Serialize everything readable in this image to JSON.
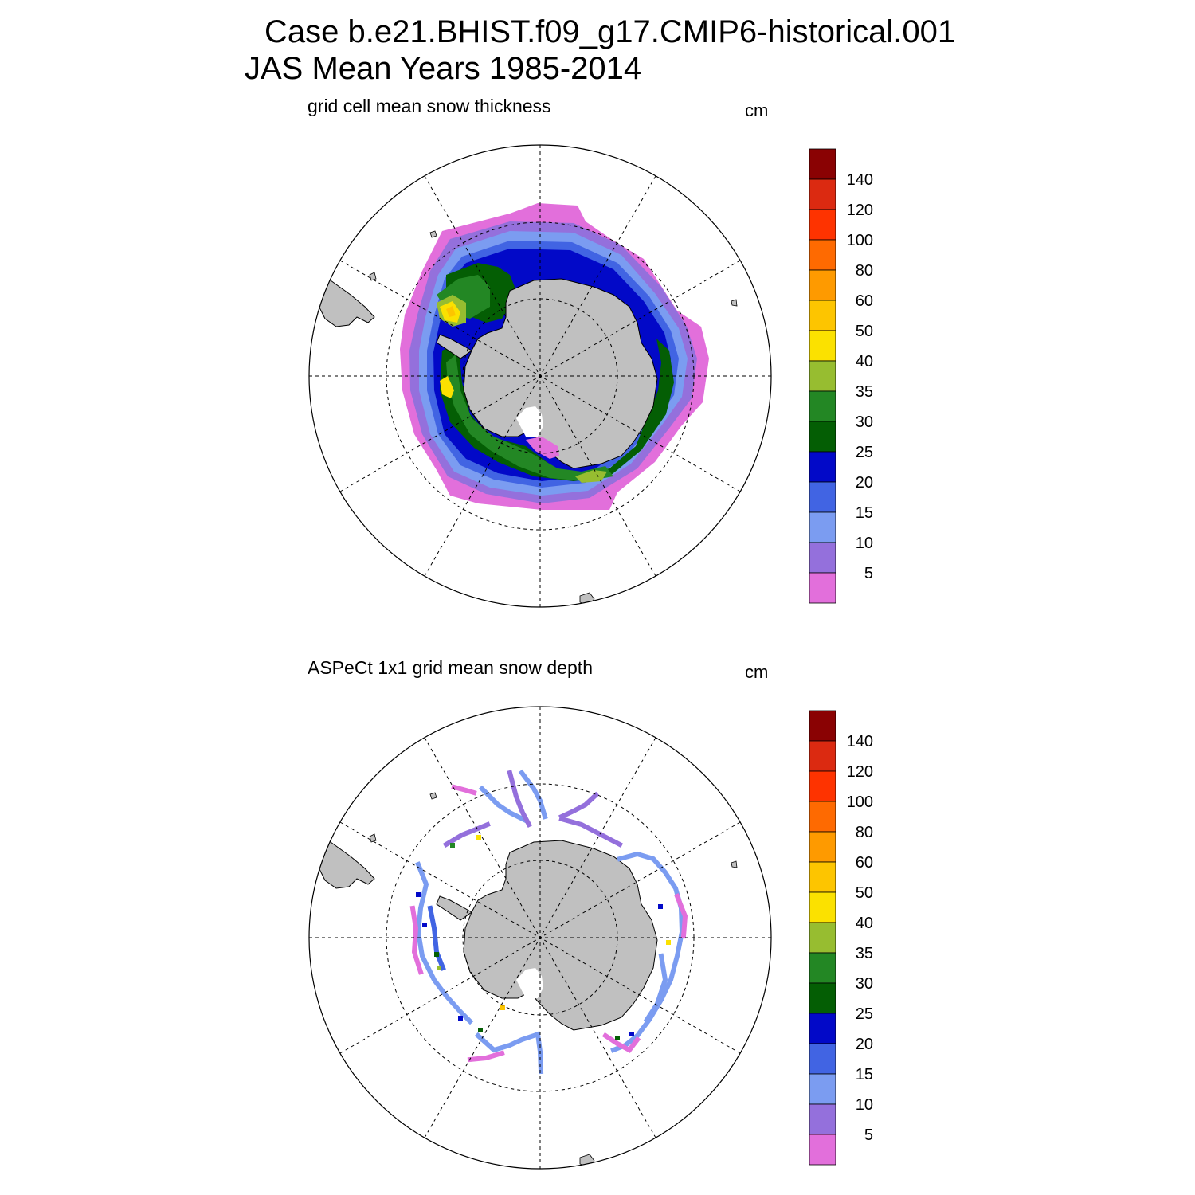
{
  "header": {
    "case_line": "Case b.e21.BHIST.f09_g17.CMIP6-historical.001",
    "period_line": "JAS Mean   Years 1985-2014"
  },
  "panels": [
    {
      "subtitle": "grid cell mean snow thickness",
      "units": "cm",
      "variable": "model snow thickness"
    },
    {
      "subtitle": "ASPeCt 1x1 grid mean snow depth",
      "units": "cm",
      "variable": "observed snow depth"
    }
  ],
  "colorbar": {
    "labels": [
      "5",
      "10",
      "15",
      "20",
      "25",
      "30",
      "35",
      "40",
      "50",
      "60",
      "80",
      "100",
      "120",
      "140"
    ],
    "colors": [
      "#e26fdb",
      "#9470dc",
      "#7b9cf1",
      "#4164e3",
      "#0209c8",
      "#045e04",
      "#238724",
      "#97bd30",
      "#fbe100",
      "#fdc500",
      "#fe9a00",
      "#fe6a01",
      "#fe3300",
      "#db2a11",
      "#8a0203"
    ]
  },
  "colors": {
    "land": "#c0c0c0",
    "coastline": "#000000",
    "grid_lines": "#000000",
    "background": "#ffffff"
  }
}
